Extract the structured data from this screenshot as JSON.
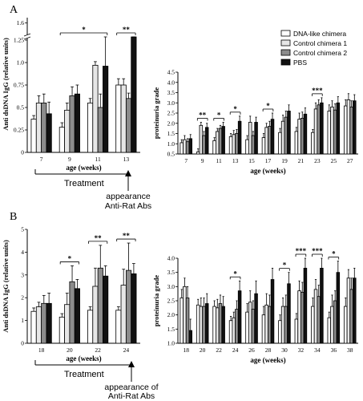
{
  "panels": [
    {
      "letter": "A"
    },
    {
      "letter": "B"
    }
  ],
  "legend": {
    "entries": [
      {
        "name": "DNA-like chimera",
        "fill": "#ffffff"
      },
      {
        "name": "Control chimera 1",
        "fill": "#e6e6e6"
      },
      {
        "name": "Control chimera 2",
        "fill": "#8c8c8c"
      },
      {
        "name": "PBS",
        "fill": "#111111"
      }
    ]
  },
  "treatment_A": {
    "label": "Treatment",
    "arrow_label_1": "appearance",
    "arrow_label_2": "Anti-Rat Abs"
  },
  "treatment_B": {
    "label": "Treatment",
    "arrow_label_1": "appearance of",
    "arrow_label_2": "Anti-Rat Abs"
  },
  "chart_data": [
    {
      "id": "A-left",
      "type": "bar",
      "ylabel": "Anti dsDNA IgG (relative units)",
      "xlabel": "age (weeks)",
      "ylim": [
        0,
        1.65
      ],
      "yticks": [
        0,
        0.25,
        0.5,
        0.75,
        1.0,
        1.25,
        1.6
      ],
      "ytick_labels": [
        "0",
        "0.25",
        "0.5",
        "0.75",
        "1.0",
        "1.25",
        "1.6"
      ],
      "axis_break": true,
      "categories": [
        "7",
        "9",
        "11",
        "13"
      ],
      "series": [
        {
          "name": "DNA-like chimera",
          "values": [
            0.37,
            0.28,
            0.55,
            0.75
          ],
          "errors": [
            0.04,
            0.05,
            0.05,
            0.07
          ]
        },
        {
          "name": "Control chimera 1",
          "values": [
            0.55,
            0.47,
            0.97,
            0.75
          ],
          "errors": [
            0.08,
            0.08,
            0.04,
            0.07
          ]
        },
        {
          "name": "Control chimera 2",
          "values": [
            0.55,
            0.63,
            0.5,
            0.6
          ],
          "errors": [
            0.1,
            0.1,
            0.15,
            0.06
          ]
        },
        {
          "name": "PBS",
          "values": [
            0.43,
            0.65,
            0.96,
            1.28
          ],
          "errors": [
            0.13,
            0.1,
            0.3,
            0.12
          ]
        }
      ],
      "annotations": [
        {
          "from": "9",
          "to": "11",
          "text": "*"
        },
        {
          "from": "13",
          "to": "13",
          "text": "**"
        }
      ]
    },
    {
      "id": "A-right",
      "type": "bar",
      "ylabel": "proteinuria grade",
      "xlabel": "age (weeks)",
      "ylim": [
        0.5,
        4.5
      ],
      "yticks": [
        0.5,
        1.0,
        1.5,
        2.0,
        2.5,
        3.0,
        3.5,
        4.0,
        4.5
      ],
      "ytick_labels": [
        "0.5",
        "1.0",
        "1.5",
        "2.0",
        "2.5",
        "3.0",
        "3.5",
        "4.0",
        "4.5"
      ],
      "categories": [
        "7",
        "9",
        "11",
        "13",
        "15",
        "17",
        "19",
        "21",
        "23",
        "25",
        "27"
      ],
      "series": [
        {
          "name": "DNA-like chimera",
          "values": [
            1.05,
            0.6,
            1.15,
            1.35,
            1.2,
            1.3,
            1.55,
            1.6,
            1.55,
            2.6,
            2.85
          ],
          "errors": [
            0.15,
            0.15,
            0.15,
            0.15,
            0.2,
            0.2,
            0.2,
            0.2,
            0.15,
            0.3,
            0.3
          ]
        },
        {
          "name": "Control chimera 1",
          "values": [
            1.2,
            1.9,
            1.6,
            1.45,
            2.05,
            1.8,
            2.1,
            2.2,
            2.7,
            2.8,
            3.15
          ],
          "errors": [
            0.2,
            0.15,
            0.15,
            0.2,
            0.3,
            0.2,
            0.3,
            0.3,
            0.3,
            0.3,
            0.3
          ]
        },
        {
          "name": "Control chimera 2",
          "values": [
            1.1,
            1.4,
            1.75,
            1.5,
            1.4,
            1.85,
            2.3,
            2.25,
            2.9,
            2.65,
            2.8
          ],
          "errors": [
            0.15,
            0.2,
            0.15,
            0.2,
            0.2,
            0.25,
            0.3,
            0.3,
            0.25,
            0.3,
            0.3
          ]
        },
        {
          "name": "PBS",
          "values": [
            1.25,
            1.8,
            1.85,
            2.1,
            2.05,
            2.2,
            2.6,
            2.45,
            3.0,
            3.0,
            3.1
          ],
          "errors": [
            0.2,
            0.2,
            0.2,
            0.25,
            0.25,
            0.3,
            0.3,
            0.3,
            0.25,
            0.3,
            0.3
          ]
        }
      ],
      "annotations": [
        {
          "from": "9",
          "to": "9",
          "text": "**"
        },
        {
          "from": "11",
          "to": "11",
          "text": "*"
        },
        {
          "from": "13",
          "to": "13",
          "text": "*"
        },
        {
          "from": "17",
          "to": "17",
          "text": "*"
        },
        {
          "from": "23",
          "to": "23",
          "text": "***"
        }
      ]
    },
    {
      "id": "B-left",
      "type": "bar",
      "ylabel": "Anti dsDNA IgG (relative units)",
      "xlabel": "age (weeks)",
      "ylim": [
        0,
        5
      ],
      "yticks": [
        0,
        1,
        2,
        3,
        4,
        5
      ],
      "ytick_labels": [
        "0",
        "1",
        "2",
        "3",
        "4",
        "5"
      ],
      "categories": [
        "18",
        "20",
        "22",
        "24"
      ],
      "series": [
        {
          "name": "DNA-like chimera",
          "values": [
            1.4,
            1.15,
            1.45,
            1.45
          ],
          "errors": [
            0.15,
            0.15,
            0.15,
            0.15
          ]
        },
        {
          "name": "Control chimera 1",
          "values": [
            1.6,
            1.7,
            2.5,
            2.55
          ],
          "errors": [
            0.2,
            0.5,
            0.8,
            0.7
          ]
        },
        {
          "name": "Control chimera 2",
          "values": [
            1.75,
            2.7,
            3.3,
            3.2
          ],
          "errors": [
            0.35,
            0.7,
            1.0,
            1.2
          ]
        },
        {
          "name": "PBS",
          "values": [
            1.75,
            2.4,
            2.95,
            3.05
          ],
          "errors": [
            0.45,
            0.4,
            0.45,
            0.45
          ]
        }
      ],
      "annotations": [
        {
          "from": "20",
          "to": "20",
          "text": "*"
        },
        {
          "from": "22",
          "to": "22",
          "text": "**"
        },
        {
          "from": "24",
          "to": "24",
          "text": "**"
        }
      ]
    },
    {
      "id": "B-right",
      "type": "bar",
      "ylabel": "proteinuria grade",
      "xlabel": "age (weeks)",
      "ylim": [
        1.0,
        4.0
      ],
      "yticks": [
        1.0,
        1.5,
        2.0,
        2.5,
        3.0,
        3.5,
        4.0
      ],
      "ytick_labels": [
        "1.0",
        "1.5",
        "2.0",
        "2.5",
        "3.0",
        "3.5",
        "4.0"
      ],
      "categories": [
        "18",
        "20",
        "22",
        "24",
        "26",
        "28",
        "30",
        "32",
        "34",
        "36",
        "38"
      ],
      "series": [
        {
          "name": "DNA-like chimera",
          "values": [
            2.6,
            2.35,
            2.3,
            1.8,
            2.1,
            2.0,
            1.8,
            1.85,
            2.3,
            1.9,
            2.3
          ],
          "errors": [
            0.3,
            0.2,
            0.2,
            0.15,
            0.3,
            0.3,
            0.2,
            0.2,
            0.3,
            0.2,
            0.3
          ]
        },
        {
          "name": "Control chimera 1",
          "values": [
            3.0,
            2.3,
            2.25,
            1.9,
            2.45,
            2.35,
            2.3,
            2.85,
            2.9,
            2.3,
            3.3
          ],
          "errors": [
            0.3,
            0.3,
            0.3,
            0.2,
            0.4,
            0.4,
            0.3,
            0.35,
            0.35,
            0.4,
            0.3
          ]
        },
        {
          "name": "Control chimera 2",
          "values": [
            2.6,
            2.3,
            2.4,
            2.2,
            2.2,
            2.3,
            2.3,
            2.8,
            2.65,
            2.5,
            2.9
          ],
          "errors": [
            0.4,
            0.3,
            0.3,
            0.3,
            0.3,
            0.4,
            0.4,
            0.35,
            0.4,
            0.35,
            0.4
          ]
        },
        {
          "name": "PBS",
          "values": [
            1.45,
            2.4,
            2.3,
            2.85,
            2.75,
            3.25,
            3.1,
            3.65,
            3.65,
            3.5,
            3.3
          ],
          "errors": [
            0.4,
            0.35,
            0.35,
            0.35,
            0.45,
            0.4,
            0.4,
            0.35,
            0.35,
            0.4,
            0.35
          ]
        }
      ],
      "annotations": [
        {
          "from": "24",
          "to": "24",
          "text": "*"
        },
        {
          "from": "30",
          "to": "30",
          "text": "*"
        },
        {
          "from": "32",
          "to": "32",
          "text": "***"
        },
        {
          "from": "34",
          "to": "34",
          "text": "***"
        },
        {
          "from": "36",
          "to": "36",
          "text": "*"
        }
      ]
    }
  ]
}
